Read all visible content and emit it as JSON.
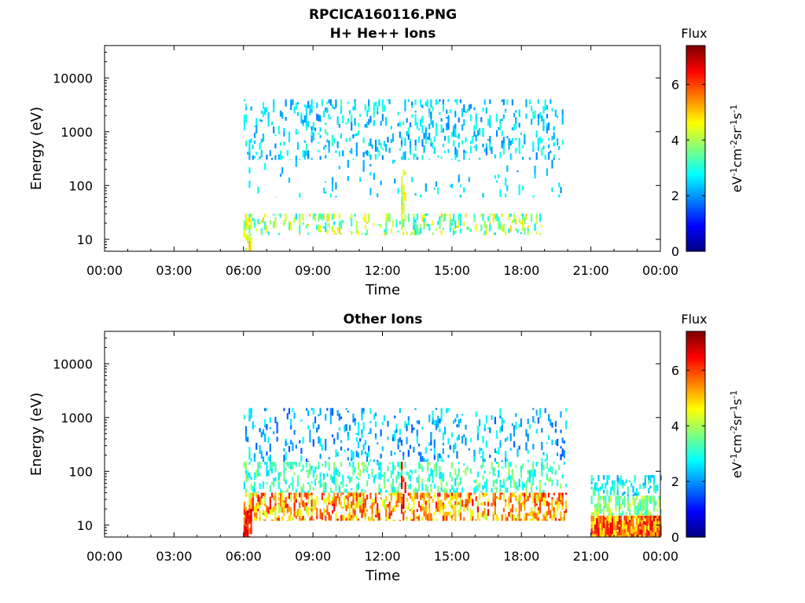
{
  "figure": {
    "title": "RPCICA160116.PNG"
  },
  "chart_data": [
    {
      "type": "heatmap",
      "title": "H+ He++ Ions",
      "xlabel": "Time",
      "ylabel": "Energy (eV)",
      "x_ticks": [
        "00:00",
        "03:00",
        "06:00",
        "09:00",
        "12:00",
        "15:00",
        "18:00",
        "21:00",
        "00:00"
      ],
      "xlim_hours": [
        0,
        24
      ],
      "y_scale": "log",
      "ylim": [
        6,
        40000
      ],
      "y_ticks": [
        10,
        100,
        1000,
        10000
      ],
      "y_tick_labels": [
        "10",
        "100",
        "1000",
        "10000"
      ],
      "colorbar": {
        "label": "Flux",
        "units": "eV-1cm-2sr-1s-1",
        "range": [
          0,
          7.4
        ],
        "ticks": [
          0,
          2,
          4,
          6
        ],
        "colormap": "jet"
      },
      "data_coverage_hours": [
        6.0,
        19.8
      ],
      "regions": [
        {
          "t_start": 6.0,
          "t_end": 19.8,
          "e_low": 300,
          "e_high": 4000,
          "density": 0.22,
          "flux": [
            1.8,
            3.2
          ]
        },
        {
          "t_start": 6.0,
          "t_end": 19.8,
          "e_low": 60,
          "e_high": 300,
          "density": 0.05,
          "flux": [
            2.0,
            3.0
          ]
        },
        {
          "t_start": 6.0,
          "t_end": 19.0,
          "e_low": 12,
          "e_high": 30,
          "density": 0.28,
          "flux": [
            2.5,
            5.0
          ]
        },
        {
          "t_start": 6.0,
          "t_end": 6.3,
          "e_low": 6,
          "e_high": 25,
          "density": 0.6,
          "flux": [
            3.5,
            5.2
          ]
        },
        {
          "t_start": 12.8,
          "t_end": 13.0,
          "e_low": 15,
          "e_high": 200,
          "density": 0.6,
          "flux": [
            3.5,
            5.0
          ]
        }
      ]
    },
    {
      "type": "heatmap",
      "title": "Other Ions",
      "xlabel": "Time",
      "ylabel": "Energy (eV)",
      "x_ticks": [
        "00:00",
        "03:00",
        "06:00",
        "09:00",
        "12:00",
        "15:00",
        "18:00",
        "21:00",
        "00:00"
      ],
      "xlim_hours": [
        0,
        24
      ],
      "y_scale": "log",
      "ylim": [
        6,
        40000
      ],
      "y_ticks": [
        10,
        100,
        1000,
        10000
      ],
      "y_tick_labels": [
        "10",
        "100",
        "1000",
        "10000"
      ],
      "colorbar": {
        "label": "Flux",
        "units": "eV-1cm-2sr-1s-1",
        "range": [
          0,
          7.4
        ],
        "ticks": [
          0,
          2,
          4,
          6
        ],
        "colormap": "jet"
      },
      "data_coverage_hours": [
        [
          6.0,
          19.9
        ],
        [
          21.0,
          24.0
        ]
      ],
      "regions": [
        {
          "t_start": 6.0,
          "t_end": 19.9,
          "e_low": 150,
          "e_high": 1500,
          "density": 0.18,
          "flux": [
            1.5,
            3.0
          ]
        },
        {
          "t_start": 6.0,
          "t_end": 19.9,
          "e_low": 40,
          "e_high": 150,
          "density": 0.3,
          "flux": [
            2.5,
            4.0
          ]
        },
        {
          "t_start": 6.0,
          "t_end": 19.9,
          "e_low": 12,
          "e_high": 40,
          "density": 0.55,
          "flux": [
            4.0,
            6.5
          ]
        },
        {
          "t_start": 6.0,
          "t_end": 6.3,
          "e_low": 6,
          "e_high": 20,
          "density": 0.8,
          "flux": [
            5.5,
            7.0
          ]
        },
        {
          "t_start": 12.8,
          "t_end": 13.0,
          "e_low": 20,
          "e_high": 150,
          "density": 0.7,
          "flux": [
            5.5,
            7.0
          ]
        },
        {
          "t_start": 21.0,
          "t_end": 24.0,
          "e_low": 6,
          "e_high": 15,
          "density": 0.95,
          "flux": [
            4.5,
            6.8
          ]
        },
        {
          "t_start": 21.0,
          "t_end": 24.0,
          "e_low": 15,
          "e_high": 35,
          "density": 0.6,
          "flux": [
            3.0,
            4.5
          ]
        },
        {
          "t_start": 21.0,
          "t_end": 24.0,
          "e_low": 35,
          "e_high": 85,
          "density": 0.35,
          "flux": [
            2.0,
            3.5
          ]
        }
      ]
    }
  ]
}
